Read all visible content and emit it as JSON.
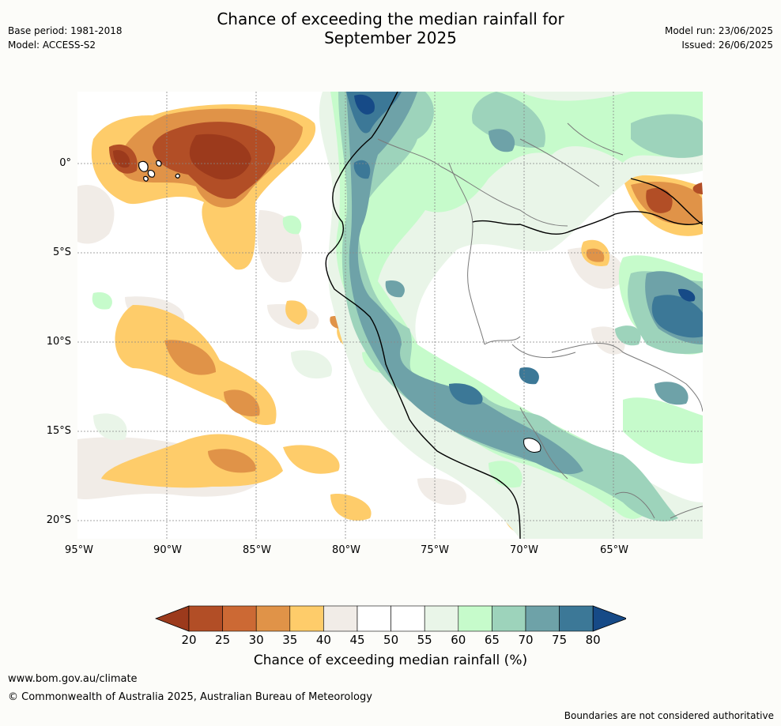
{
  "title_line1": "Chance of exceeding the median rainfall for",
  "title_line2": "September 2025",
  "meta_left": {
    "base_period": "Base period: 1981-2018",
    "model": "Model: ACCESS-S2"
  },
  "meta_right": {
    "model_run": "Model run: 23/06/2025",
    "issued": "Issued: 26/06/2025"
  },
  "map": {
    "lon_labels": [
      "95°W",
      "90°W",
      "85°W",
      "80°W",
      "75°W",
      "70°W",
      "65°W"
    ],
    "lat_labels": [
      "0°",
      "5°S",
      "10°S",
      "15°S",
      "20°S"
    ]
  },
  "legend": {
    "title": "Chance of exceeding median rainfall (%)",
    "ticks": [
      "20",
      "25",
      "30",
      "35",
      "40",
      "45",
      "50",
      "55",
      "60",
      "65",
      "70",
      "75",
      "80"
    ],
    "colors": [
      "#9c3a1c",
      "#b24e26",
      "#cc6934",
      "#e09348",
      "#fecc6a",
      "#f1ece7",
      "#ffffff",
      "#ffffff",
      "#e9f5e8",
      "#c6fbcb",
      "#9dd3bb",
      "#6ea2a8",
      "#3c7897",
      "#164a87"
    ]
  },
  "footer": {
    "website": "www.bom.gov.au/climate",
    "copyright": "© Commonwealth of Australia 2025, Australian Bureau of Meteorology",
    "disclaimer": "Boundaries are not considered authoritative"
  }
}
